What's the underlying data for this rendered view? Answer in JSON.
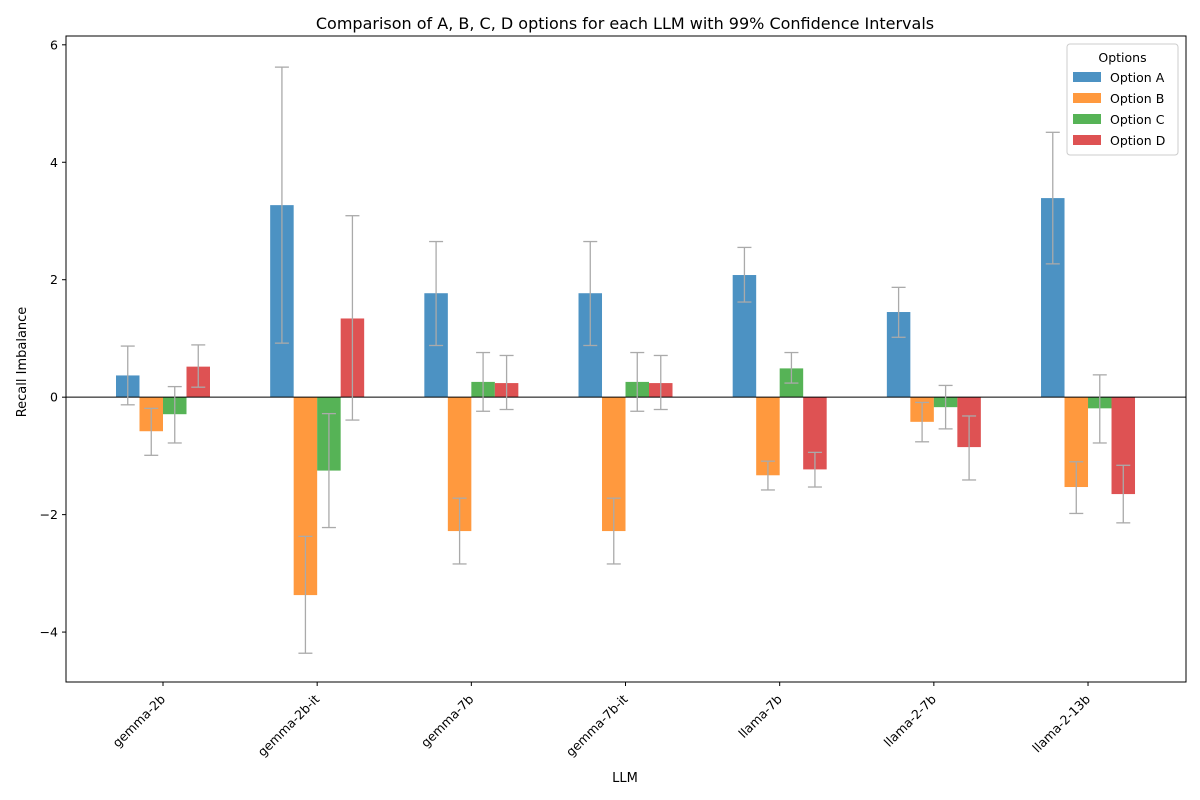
{
  "chart_data": {
    "type": "bar",
    "title": "Comparison of A, B, C, D options for each LLM with 99% Confidence Intervals",
    "xlabel": "LLM",
    "ylabel": "Recall Imbalance",
    "ylim": [
      -4.85,
      6.15
    ],
    "yticks": [
      -4,
      -2,
      0,
      2,
      4,
      6
    ],
    "ytick_labels": [
      "−4",
      "−2",
      "0",
      "2",
      "4",
      "6"
    ],
    "grid": false,
    "legend": {
      "title": "Options",
      "placement": "top-right"
    },
    "categories": [
      "gemma-2b",
      "gemma-2b-it",
      "gemma-7b",
      "gemma-7b-it",
      "llama-7b",
      "llama-2-7b",
      "llama-2-13b"
    ],
    "series": [
      {
        "name": "Option A",
        "color": "#1f77b4",
        "values": [
          0.37,
          3.27,
          1.77,
          1.77,
          2.08,
          1.45,
          3.39
        ],
        "ci_low": [
          -0.13,
          0.92,
          0.88,
          0.88,
          1.62,
          1.02,
          2.27
        ],
        "ci_high": [
          0.87,
          5.62,
          2.65,
          2.65,
          2.55,
          1.87,
          4.51
        ]
      },
      {
        "name": "Option B",
        "color": "#ff7f0e",
        "values": [
          -0.58,
          -3.37,
          -2.28,
          -2.28,
          -1.33,
          -0.42,
          -1.53
        ],
        "ci_low": [
          -0.99,
          -4.36,
          -2.84,
          -2.84,
          -1.58,
          -0.76,
          -1.98
        ],
        "ci_high": [
          -0.19,
          -2.37,
          -1.72,
          -1.72,
          -1.09,
          -0.09,
          -1.1
        ]
      },
      {
        "name": "Option C",
        "color": "#2ca02c",
        "values": [
          -0.29,
          -1.25,
          0.26,
          0.26,
          0.49,
          -0.17,
          -0.19
        ],
        "ci_low": [
          -0.78,
          -2.22,
          -0.24,
          -0.24,
          0.24,
          -0.54,
          -0.78
        ],
        "ci_high": [
          0.18,
          -0.28,
          0.76,
          0.76,
          0.76,
          0.2,
          0.38
        ]
      },
      {
        "name": "Option D",
        "color": "#d62728",
        "values": [
          0.52,
          1.34,
          0.24,
          0.24,
          -1.23,
          -0.85,
          -1.65
        ],
        "ci_low": [
          0.17,
          -0.39,
          -0.21,
          -0.21,
          -1.53,
          -1.41,
          -2.14
        ],
        "ci_high": [
          0.89,
          3.09,
          0.71,
          0.71,
          -0.94,
          -0.32,
          -1.16
        ]
      }
    ]
  }
}
